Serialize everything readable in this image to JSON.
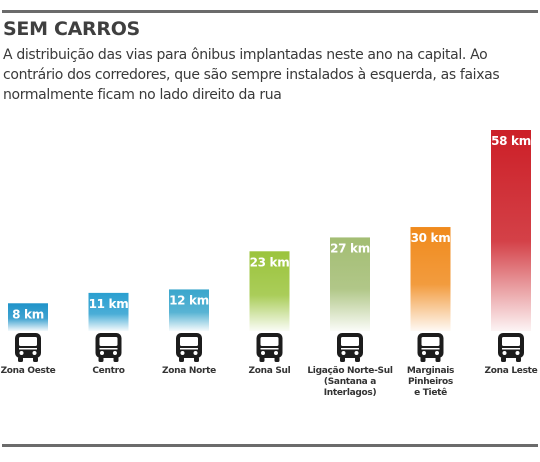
{
  "header": {
    "title": "SEM CARROS",
    "subtitle": "A distribuição das vias para ônibus implantadas neste ano na capital. Ao contrário dos corredores, que são sempre instalados à esquerda, as faixas normalmente ficam no lado direito da rua"
  },
  "chart_data": {
    "type": "bar",
    "title": "SEM CARROS",
    "xlabel": "",
    "ylabel": "",
    "unit": "km",
    "categories": [
      "Zona Oeste",
      "Centro",
      "Zona Norte",
      "Zona Sul",
      "Ligação Norte-Sul (Santana a Interlagos)",
      "Marginais Pinheiros e Tietê",
      "Zona Leste"
    ],
    "category_lines": [
      [
        "Zona Oeste"
      ],
      [
        "Centro"
      ],
      [
        "Zona Norte"
      ],
      [
        "Zona Sul"
      ],
      [
        "Ligação Norte-Sul",
        "(Santana a",
        "Interlagos)"
      ],
      [
        "Marginais",
        "Pinheiros",
        "e Tietê"
      ],
      [
        "Zona Leste"
      ]
    ],
    "values": [
      8,
      11,
      12,
      23,
      27,
      30,
      58
    ],
    "data_labels": [
      "8 km",
      "11 km",
      "12 km",
      "23 km",
      "27 km",
      "30 km",
      "58 km"
    ],
    "colors": [
      "#1f93c9",
      "#2a9fd0",
      "#3aa6cc",
      "#9bc43c",
      "#a3bd73",
      "#f08a1c",
      "#cc1f27"
    ],
    "ylim": [
      0,
      58
    ],
    "grid": false,
    "legend": "none",
    "icon": "bus-icon"
  }
}
